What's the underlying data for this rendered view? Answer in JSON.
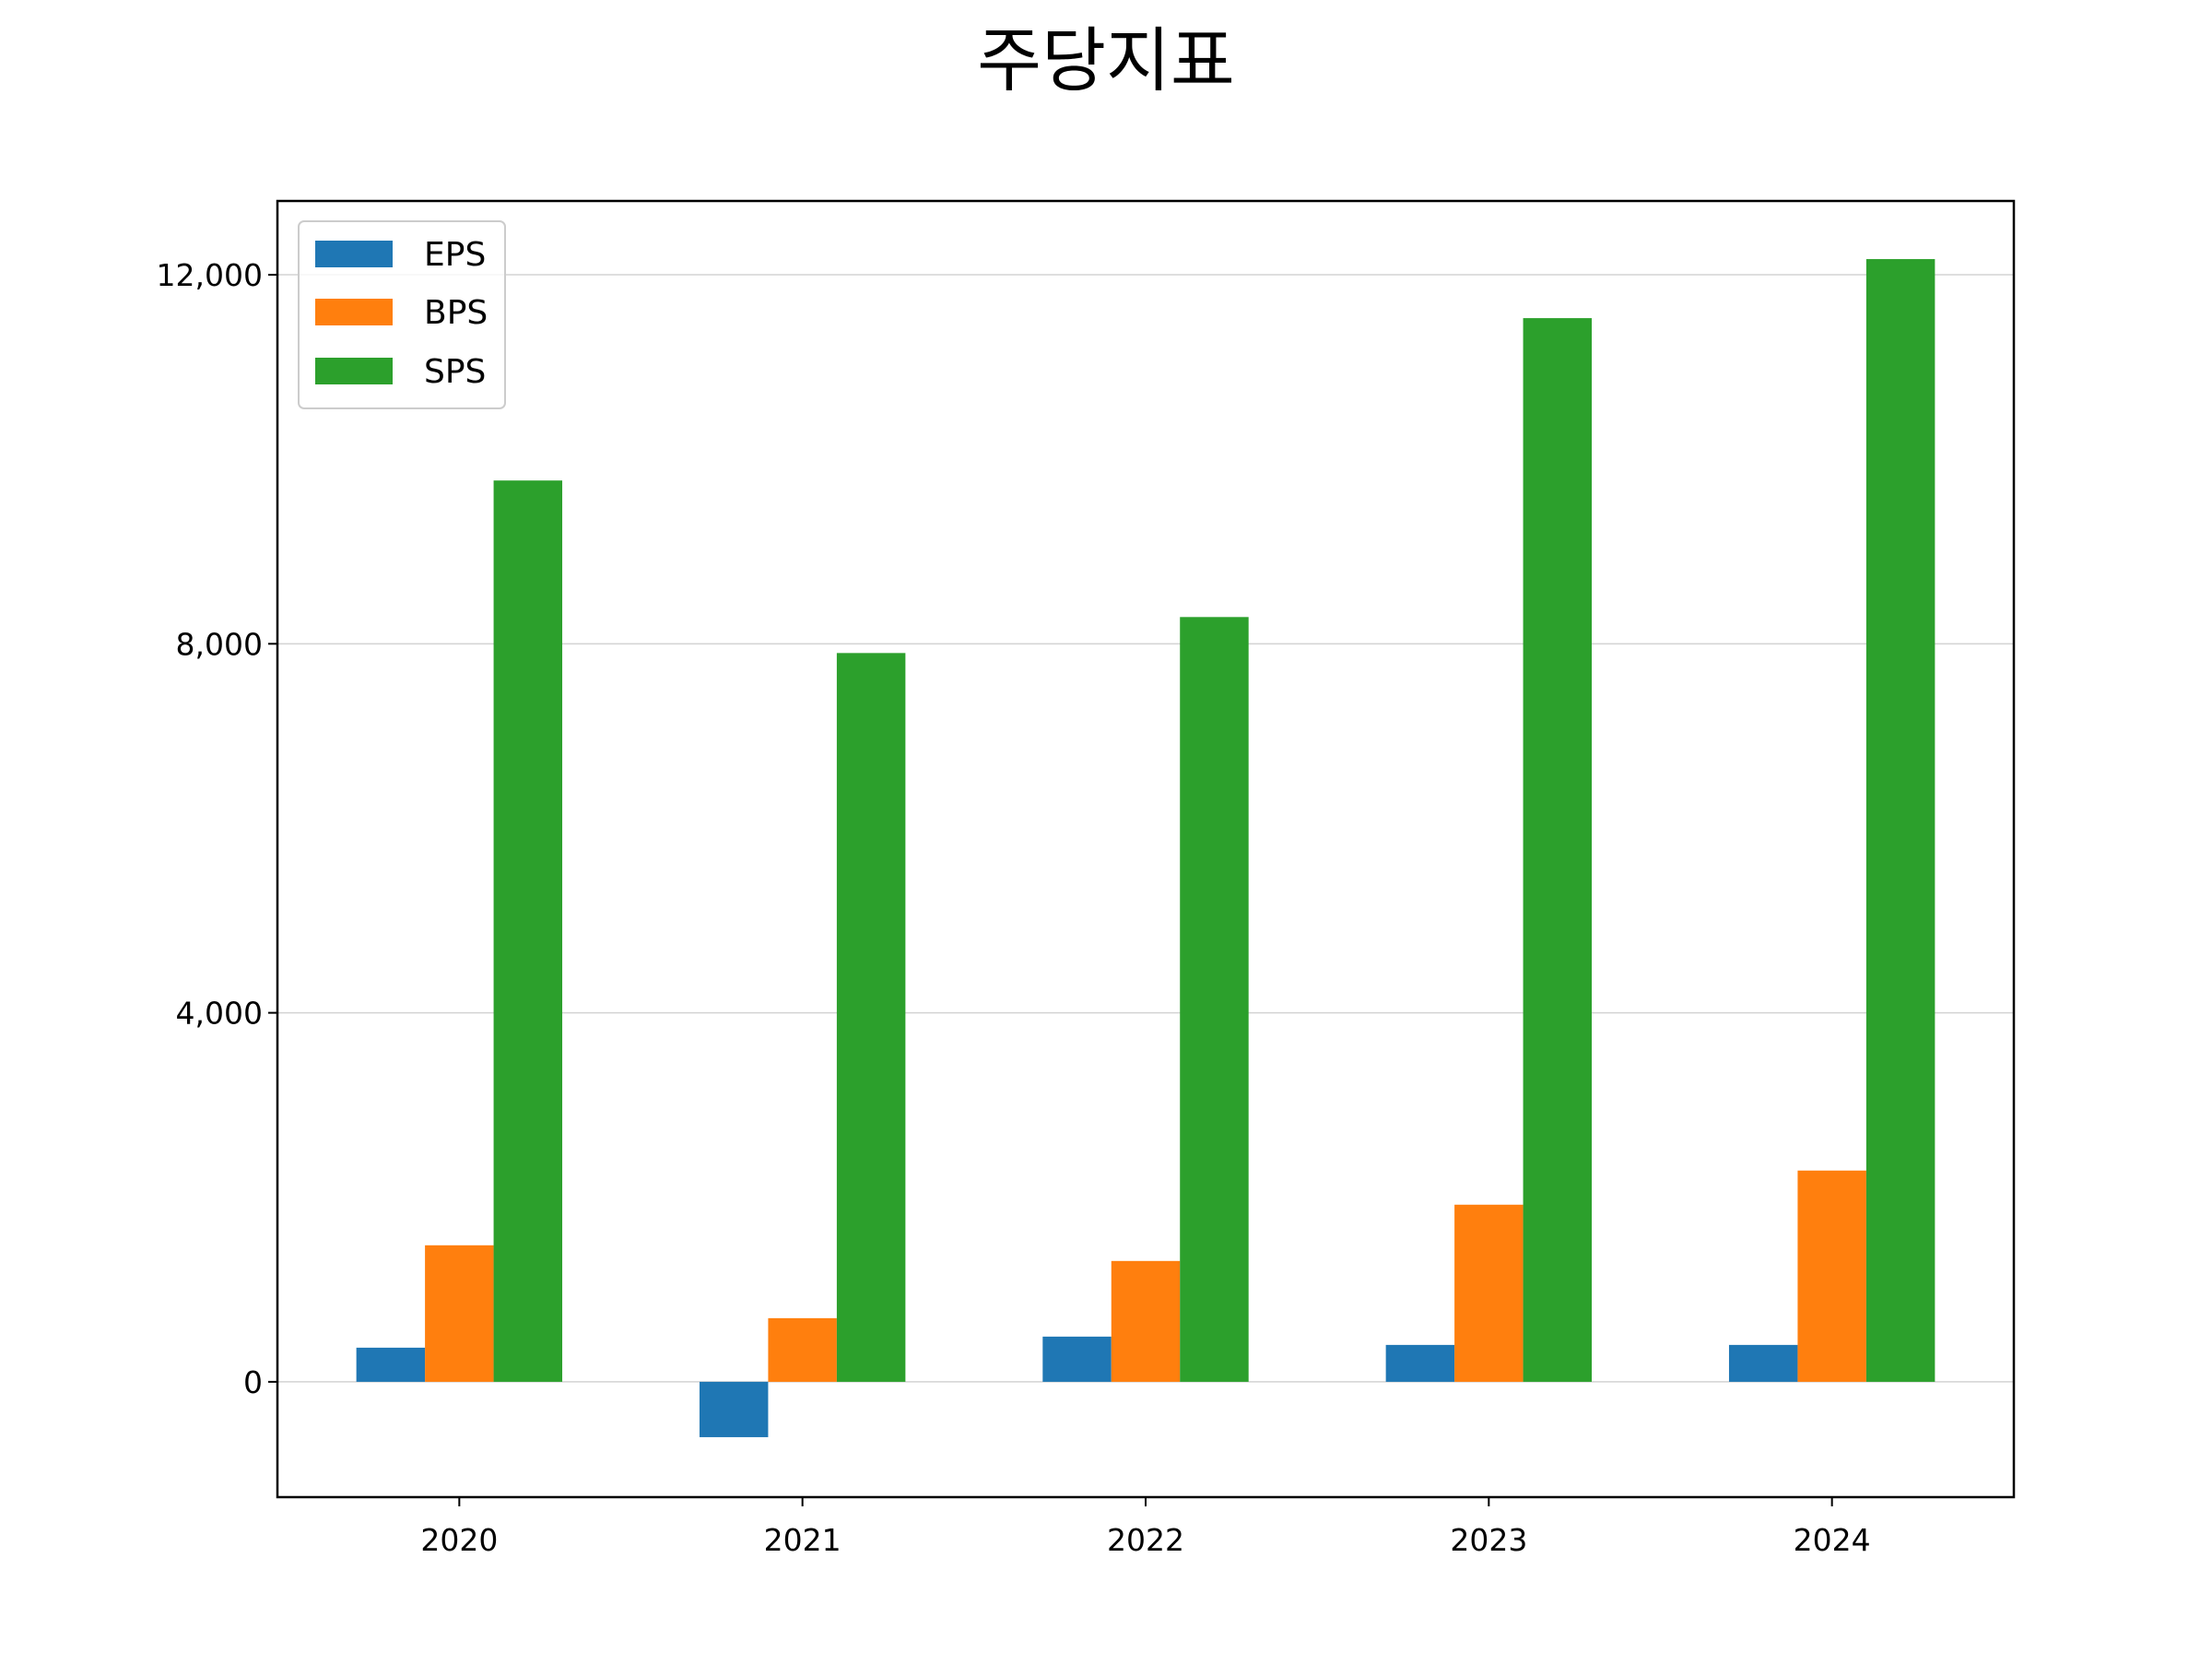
{
  "chart_data": {
    "type": "bar",
    "title": "주당지표",
    "xlabel": "",
    "ylabel": "",
    "categories": [
      "2020",
      "2021",
      "2022",
      "2023",
      "2024"
    ],
    "series": [
      {
        "name": "EPS",
        "color": "#1f77b4",
        "values": [
          370,
          -600,
          490,
          400,
          400
        ]
      },
      {
        "name": "BPS",
        "color": "#ff7f0e",
        "values": [
          1480,
          690,
          1310,
          1920,
          2290
        ]
      },
      {
        "name": "SPS",
        "color": "#2ca02c",
        "values": [
          9770,
          7900,
          8290,
          11530,
          12170
        ]
      }
    ],
    "ylim": [
      -1250,
      12800
    ],
    "yticks": [
      0,
      4000,
      8000,
      12000
    ],
    "ytick_labels": [
      "0",
      "4,000",
      "8,000",
      "12,000"
    ],
    "grid": "y",
    "legend_position": "upper-left"
  }
}
